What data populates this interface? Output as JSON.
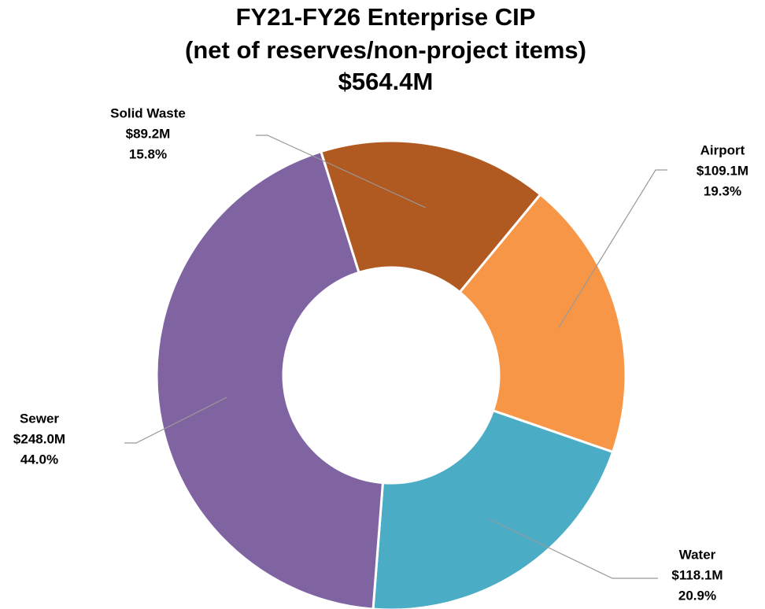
{
  "chart_data": {
    "type": "donut",
    "title": "FY21-FY26 Enterprise CIP",
    "subtitle": "(net of reserves/non-project items)",
    "total": 564.4,
    "total_label": "$564.4M",
    "categories": [
      "Airport",
      "Water",
      "Sewer",
      "Solid Waste"
    ],
    "values": [
      109.1,
      118.1,
      248.0,
      89.2
    ],
    "value_labels": [
      "$109.1M",
      "$118.1M",
      "$248.0M",
      "$89.2M"
    ],
    "percentages": [
      19.3,
      20.9,
      44.0,
      15.8
    ],
    "percentage_labels": [
      "19.3%",
      "20.9%",
      "44.0%",
      "15.8%"
    ],
    "colors": [
      "#f79646",
      "#4bacc6",
      "#8064a2",
      "#b05a22"
    ]
  }
}
